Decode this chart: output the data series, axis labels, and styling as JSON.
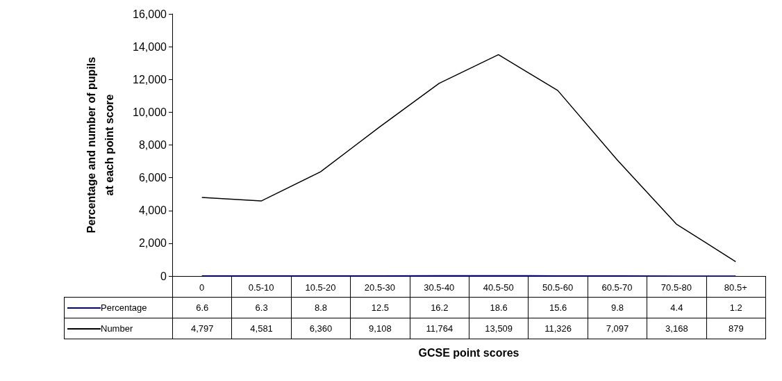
{
  "chart_data": {
    "type": "line",
    "ylabel": "Percentage and number of pupils at each point score",
    "xlabel": "GCSE point scores",
    "categories": [
      "0",
      "0.5-10",
      "10.5-20",
      "20.5-30",
      "30.5-40",
      "40.5-50",
      "50.5-60",
      "60.5-70",
      "70.5-80",
      "80.5+"
    ],
    "series": [
      {
        "name": "Percentage",
        "color": "#000080",
        "values": [
          6.6,
          6.3,
          8.8,
          12.5,
          16.2,
          18.6,
          15.6,
          9.8,
          4.4,
          1.2
        ],
        "value_labels": [
          "6.6",
          "6.3",
          "8.8",
          "12.5",
          "16.2",
          "18.6",
          "15.6",
          "9.8",
          "4.4",
          "1.2"
        ]
      },
      {
        "name": "Number",
        "color": "#000000",
        "values": [
          4797,
          4581,
          6360,
          9108,
          11764,
          13509,
          11326,
          7097,
          3168,
          879
        ],
        "value_labels": [
          "4,797",
          "4,581",
          "6,360",
          "9,108",
          "11,764",
          "13,509",
          "11,326",
          "7,097",
          "3,168",
          "879"
        ]
      }
    ],
    "ylim": [
      0,
      16000
    ],
    "yticks": [
      0,
      {
        "value": 2000,
        "label": "2,000"
      },
      {
        "value": 4000,
        "label": "4,000"
      },
      {
        "value": 6000,
        "label": "6,000"
      },
      {
        "value": 8000,
        "label": "8,000"
      },
      {
        "value": 10000,
        "label": "10,000"
      },
      {
        "value": 12000,
        "label": "12,000"
      },
      {
        "value": 14000,
        "label": "14,000"
      },
      {
        "value": 16000,
        "label": "16,000"
      }
    ],
    "legend": "bottom left",
    "grid": false,
    "marker": "none",
    "line_style": "solid"
  }
}
